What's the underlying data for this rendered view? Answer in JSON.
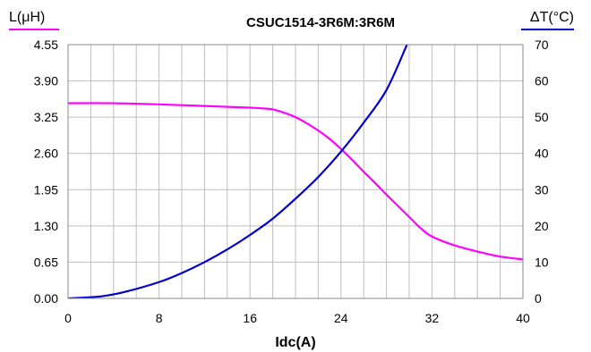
{
  "chart_data": {
    "type": "line",
    "title": "CSUC1514-3R6M:3R6M",
    "xlabel": "Idc(A)",
    "ylabel_left": "L(μH)",
    "ylabel_right": "ΔT(°C)",
    "xlim": [
      0,
      40
    ],
    "ylim_left": [
      0,
      4.55
    ],
    "ylim_right": [
      0,
      70
    ],
    "x_ticks": [
      "0",
      "8",
      "16",
      "24",
      "32",
      "40"
    ],
    "y_left_ticks": [
      "0.00",
      "0.65",
      "1.30",
      "1.95",
      "2.60",
      "3.25",
      "3.90",
      "4.55"
    ],
    "y_right_ticks": [
      "0",
      "10",
      "20",
      "30",
      "40",
      "50",
      "60",
      "70"
    ],
    "grid": true,
    "series": [
      {
        "axis": "left",
        "color": "#ff00ff",
        "x": [
          0,
          4,
          8,
          12,
          16,
          17,
          18,
          19,
          20,
          21,
          22,
          23,
          24,
          25,
          26,
          27,
          28,
          29,
          30,
          31,
          32,
          34,
          36,
          38,
          40
        ],
        "y": [
          3.5,
          3.5,
          3.48,
          3.45,
          3.42,
          3.41,
          3.39,
          3.33,
          3.25,
          3.14,
          3.01,
          2.86,
          2.68,
          2.48,
          2.27,
          2.07,
          1.86,
          1.66,
          1.46,
          1.26,
          1.11,
          0.95,
          0.84,
          0.75,
          0.7
        ]
      },
      {
        "axis": "right",
        "color": "#0000cc",
        "x": [
          0,
          3,
          5,
          8,
          10,
          12,
          14,
          16,
          18,
          20,
          22,
          24,
          26,
          28,
          29.8
        ],
        "y": [
          0,
          0.6,
          1.8,
          4.5,
          7.0,
          10.0,
          13.5,
          17.5,
          22.0,
          27.5,
          33.5,
          40.5,
          48.5,
          57.5,
          70
        ]
      }
    ]
  },
  "colors": {
    "left_axis_accent": "#ff00ff",
    "right_axis_accent": "#0000cc",
    "grid": "#bdbdbd",
    "frame": "#888888"
  }
}
